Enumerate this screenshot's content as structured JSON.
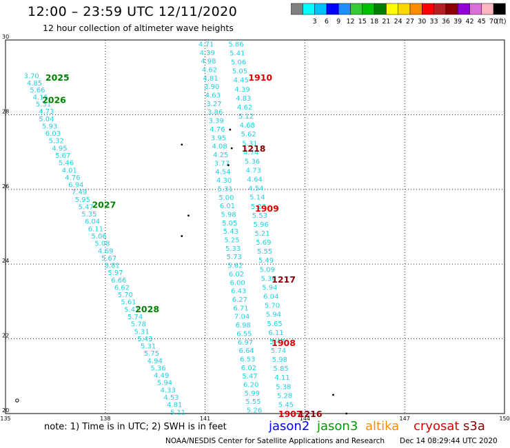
{
  "header": {
    "title": "12:00 – 23:59 UTC 12/11/2020",
    "subtitle": "12 hour collection of altimeter wave heights"
  },
  "footer": {
    "note": "note:  1) Time is in UTC;  2) SWH is in feet",
    "satellites": [
      {
        "name": "jason2",
        "color": "#0000ff"
      },
      {
        "name": "jason3",
        "color": "#009a00"
      },
      {
        "name": "altika",
        "color": "#ff8c00"
      },
      {
        "name": "cryosat",
        "color": "#dd0000"
      },
      {
        "name": "s3a",
        "color": "#8b0000"
      }
    ],
    "credit": "NOAA/NESDIS Center for Satellite Applications and Research",
    "generated": "Dec 14 08:29:44 UTC 2020"
  },
  "legend": {
    "unit": "(ft)",
    "bins": [
      {
        "label": "",
        "color": "#808080"
      },
      {
        "label": "3",
        "color": "#00ffff"
      },
      {
        "label": "6",
        "color": "#00bfff"
      },
      {
        "label": "9",
        "color": "#0000ff"
      },
      {
        "label": "12",
        "color": "#1e90ff"
      },
      {
        "label": "15",
        "color": "#32cd32"
      },
      {
        "label": "18",
        "color": "#00c000"
      },
      {
        "label": "21",
        "color": "#008000"
      },
      {
        "label": "24",
        "color": "#ffff00"
      },
      {
        "label": "27",
        "color": "#ffd700"
      },
      {
        "label": "30",
        "color": "#ff8c00"
      },
      {
        "label": "33",
        "color": "#ff0000"
      },
      {
        "label": "36",
        "color": "#b22222"
      },
      {
        "label": "39",
        "color": "#8b0000"
      },
      {
        "label": "42",
        "color": "#9400d3"
      },
      {
        "label": "45",
        "color": "#da70d6"
      },
      {
        "label": "70",
        "color": "#ffb6c1"
      },
      {
        "label": "",
        "color": "#000000"
      }
    ]
  },
  "chart_data": {
    "type": "scatter",
    "title": "12:00 – 23:59 UTC 12/11/2020",
    "subtitle": "12 hour collection of altimeter wave heights",
    "xlim": [
      135,
      150
    ],
    "ylim": [
      20,
      30
    ],
    "x_ticks": [
      135,
      138,
      141,
      144,
      147,
      150
    ],
    "y_ticks": [
      20,
      22,
      24,
      26,
      28,
      30
    ],
    "grid": true,
    "units": "ft",
    "track_labels": [
      {
        "text": "2025",
        "lon": 136.2,
        "lat": 29.0,
        "color": "#008000"
      },
      {
        "text": "2026",
        "lon": 136.1,
        "lat": 28.4,
        "color": "#008000"
      },
      {
        "text": "2027",
        "lon": 137.6,
        "lat": 25.6,
        "color": "#008000"
      },
      {
        "text": "2028",
        "lon": 138.9,
        "lat": 22.8,
        "color": "#008000"
      },
      {
        "text": "1910",
        "lon": 142.3,
        "lat": 29.0,
        "color": "#dd0000"
      },
      {
        "text": "1218",
        "lon": 142.1,
        "lat": 27.1,
        "color": "#8b0000"
      },
      {
        "text": "1909",
        "lon": 142.5,
        "lat": 25.5,
        "color": "#dd0000"
      },
      {
        "text": "1217",
        "lon": 143.0,
        "lat": 23.6,
        "color": "#8b0000"
      },
      {
        "text": "1908",
        "lon": 143.0,
        "lat": 21.9,
        "color": "#dd0000"
      },
      {
        "text": "1907",
        "lon": 143.2,
        "lat": 20.0,
        "color": "#dd0000"
      },
      {
        "text": "1216",
        "lon": 143.8,
        "lat": 20.0,
        "color": "#8b0000"
      }
    ],
    "tracks": [
      {
        "color": "#20d0e0",
        "start": [
          135.55,
          29.05
        ],
        "end": [
          136.0,
          28.1
        ],
        "values": [
          "3.70",
          "4.85",
          "5.66",
          "4.15",
          "5.31",
          "4.73"
        ]
      },
      {
        "color": "#20d0e0",
        "start": [
          136.0,
          27.9
        ],
        "end": [
          139.95,
          20.05
        ],
        "values": [
          "5.04",
          "5.93",
          "6.03",
          "5.32",
          "4.95",
          "5.67",
          "5.46",
          "4.01",
          "4.76",
          "6.94",
          "7.49",
          "5.95",
          "5.47",
          "5.35",
          "6.04",
          "6.11",
          "5.06",
          "5.08",
          "4.69",
          "5.67",
          "5.81",
          "5.97",
          "6.66",
          "6.62",
          "5.70",
          "5.61",
          "5.41",
          "5.74",
          "5.78",
          "5.31",
          "5.43",
          "5.31",
          "5.75",
          "4.94",
          "5.36",
          "4.49",
          "5.94",
          "4.33",
          "4.53",
          "4.81",
          "5.11"
        ]
      },
      {
        "color": "#20d0e0",
        "start": [
          140.8,
          29.9
        ],
        "end": [
          142.25,
          20.1
        ],
        "values": [
          "4.71",
          "4.39",
          "4.98",
          "4.62",
          "4.81",
          "3.90",
          "4.63",
          "3.27",
          "3.86",
          "3.39",
          "4.76",
          "3.95",
          "4.08",
          "4.25",
          "3.77",
          "4.54",
          "4.30",
          "5.31",
          "5.00",
          "6.01",
          "5.98",
          "5.05",
          "5.43",
          "5.25",
          "5.33",
          "5.73",
          "5.62",
          "6.02",
          "6.00",
          "6.43",
          "6.27",
          "6.71",
          "7.04",
          "6.98",
          "6.55",
          "6.97",
          "6.64",
          "6.53",
          "6.02",
          "5.47",
          "6.20",
          "5.99",
          "5.55",
          "5.26"
        ]
      },
      {
        "color": "#20d0e0",
        "start": [
          141.7,
          29.9
        ],
        "end": [
          143.2,
          20.25
        ],
        "values": [
          "5.86",
          "5.41",
          "5.06",
          "5.05",
          "4.45",
          "4.39",
          "4.83",
          "4.62",
          "5.12",
          "4.68",
          "5.62",
          "5.31",
          "4.74",
          "5.36",
          "4.73",
          "4.64",
          "4.54",
          "5.14",
          "5.23",
          "5.53",
          "5.96",
          "5.21",
          "5.69",
          "5.55",
          "5.49",
          "5.09",
          "5.36",
          "5.94",
          "6.04",
          "5.70",
          "5.94",
          "5.65",
          "6.11",
          "5.47",
          "5.74",
          "5.98",
          "5.85",
          "4.11",
          "5.38",
          "5.28",
          "5.45"
        ]
      }
    ],
    "points": [
      {
        "lon": 135.35,
        "lat": 20.35,
        "marker": "open"
      },
      {
        "lon": 141.75,
        "lat": 27.6,
        "marker": "dot"
      },
      {
        "lon": 141.8,
        "lat": 27.1,
        "marker": "dot"
      },
      {
        "lon": 141.7,
        "lat": 26.65,
        "marker": "dot"
      },
      {
        "lon": 140.3,
        "lat": 27.2,
        "marker": "dot"
      },
      {
        "lon": 140.5,
        "lat": 25.3,
        "marker": "dot"
      },
      {
        "lon": 140.3,
        "lat": 24.75,
        "marker": "dot"
      },
      {
        "lon": 144.85,
        "lat": 20.5,
        "marker": "dot"
      },
      {
        "lon": 145.25,
        "lat": 20.0,
        "marker": "dot"
      }
    ]
  }
}
